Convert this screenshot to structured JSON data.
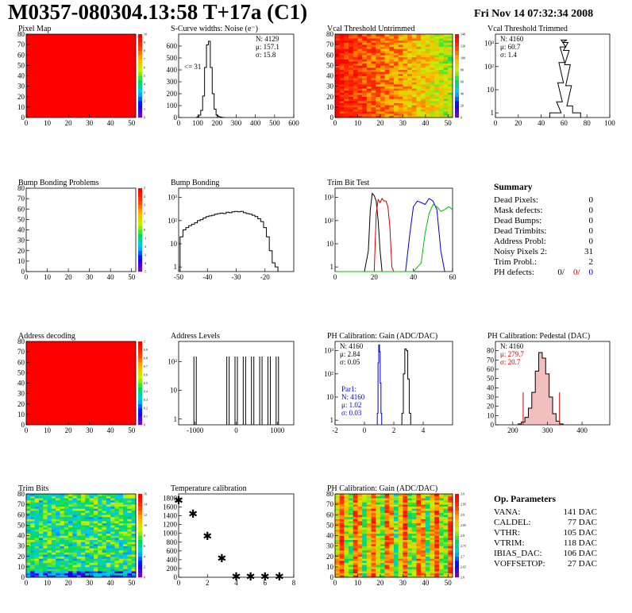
{
  "header": {
    "title": "M0357-080304.13:58 T+17a (C1)",
    "timestamp": "Fri Nov 14 07:32:34 2008"
  },
  "summary": {
    "title": "Summary",
    "rows": [
      {
        "label": "Dead Pixels:",
        "value": "0"
      },
      {
        "label": "Mask defects:",
        "value": "0"
      },
      {
        "label": "Dead Bumps:",
        "value": "0"
      },
      {
        "label": "Dead Trimbits:",
        "value": "0"
      },
      {
        "label": "Address Probl:",
        "value": "0"
      },
      {
        "label": "Noisy Pixels 2:",
        "value": "31"
      },
      {
        "label": "Trim Probl.:",
        "value": "2"
      }
    ],
    "ph_label": "PH defects:",
    "ph_values": [
      "0/",
      "0/",
      "0"
    ]
  },
  "op_params": {
    "title": "Op. Parameters",
    "rows": [
      {
        "label": "VANA:",
        "value": "141 DAC"
      },
      {
        "label": "CALDEL:",
        "value": "77 DAC"
      },
      {
        "label": "VTHR:",
        "value": "105 DAC"
      },
      {
        "label": "VTRIM:",
        "value": "118 DAC"
      },
      {
        "label": "IBIAS_DAC:",
        "value": "106 DAC"
      },
      {
        "label": "VOFFSETOP:",
        "value": "27 DAC"
      }
    ]
  },
  "chart_data": [
    {
      "id": "pixel-map",
      "type": "heatmap",
      "title": "Pixel Map",
      "xlim": [
        0,
        52
      ],
      "ylim": [
        0,
        80
      ],
      "xticks": [
        "0",
        "10",
        "20",
        "30",
        "40",
        "50"
      ],
      "yticks": [
        "0",
        "10",
        "20",
        "30",
        "40",
        "50",
        "60",
        "70",
        "80"
      ],
      "fill": "uniform",
      "value": 10,
      "zlim": [
        0,
        10
      ],
      "zticks": [
        "0",
        "1",
        "2",
        "3",
        "4",
        "5",
        "6",
        "7",
        "8",
        "9",
        "10"
      ]
    },
    {
      "id": "scurve",
      "type": "bar",
      "title": "S-Curve widths: Noise (e⁻)",
      "xlim": [
        0,
        600
      ],
      "ylim": [
        0,
        700
      ],
      "xticks": [
        "0",
        "100",
        "200",
        "300",
        "400",
        "500",
        "600"
      ],
      "yticks": [
        "0",
        "100",
        "200",
        "300",
        "400",
        "500",
        "600"
      ],
      "stats": [
        "N: 4129",
        "μ: 157.1",
        "σ: 15.8"
      ],
      "annotation": "<= 31",
      "x": [
        100,
        110,
        120,
        130,
        140,
        150,
        160,
        170,
        180,
        190,
        200,
        210,
        220,
        230
      ],
      "values": [
        5,
        20,
        60,
        180,
        420,
        610,
        640,
        420,
        200,
        70,
        20,
        8,
        3,
        1
      ]
    },
    {
      "id": "vcal-untrimmed",
      "type": "heatmap",
      "title": "Vcal Threshold Untrimmed",
      "xlim": [
        0,
        52
      ],
      "ylim": [
        0,
        80
      ],
      "xticks": [
        "0",
        "10",
        "20",
        "30",
        "40",
        "50"
      ],
      "yticks": [
        "0",
        "10",
        "20",
        "30",
        "40",
        "50",
        "60",
        "70",
        "80"
      ],
      "fill": "gradient-left-right",
      "zlim": [
        0,
        140
      ],
      "zticks": [
        "0",
        "20",
        "40",
        "60",
        "80",
        "100",
        "120",
        "140"
      ]
    },
    {
      "id": "vcal-trimmed",
      "type": "bar",
      "title": "Vcal Threshold Trimmed",
      "xlim": [
        0,
        100
      ],
      "log": true,
      "xticks": [
        "0",
        "20",
        "40",
        "60",
        "80",
        "100"
      ],
      "yticks": [
        "1",
        "10",
        "10²",
        "10³"
      ],
      "stats": [
        "N: 4160",
        "μ: 60.7",
        "σ: 1.4"
      ],
      "x": [
        50,
        55,
        56,
        57,
        58,
        59,
        60,
        61,
        62,
        63,
        64,
        65,
        70,
        72
      ],
      "values": [
        1,
        1,
        3,
        20,
        150,
        700,
        1400,
        1100,
        500,
        120,
        15,
        2,
        1,
        1
      ]
    },
    {
      "id": "bump-map",
      "type": "heatmap",
      "title": "Bump Bonding Problems",
      "xlim": [
        0,
        52
      ],
      "ylim": [
        0,
        80
      ],
      "xticks": [
        "0",
        "10",
        "20",
        "30",
        "40",
        "50"
      ],
      "yticks": [
        "0",
        "10",
        "20",
        "30",
        "40",
        "50",
        "60",
        "70",
        "80"
      ],
      "fill": "none",
      "zlim": [
        -5,
        5
      ],
      "zticks": [
        "-5",
        "-4",
        "-3",
        "-2",
        "-1",
        "0",
        "1",
        "2",
        "3",
        "4",
        "5"
      ]
    },
    {
      "id": "bump-bonding",
      "type": "bar",
      "title": "Bump Bonding",
      "xlim": [
        -50,
        -10
      ],
      "log": true,
      "xticks": [
        "-50",
        "-40",
        "-30",
        "-20"
      ],
      "yticks": [
        "1",
        "10",
        "10²",
        "10³"
      ],
      "x": [
        -49,
        -48,
        -47,
        -46,
        -45,
        -44,
        -43,
        -42,
        -41,
        -40,
        -39,
        -38,
        -37,
        -36,
        -35,
        -34,
        -33,
        -32,
        -31,
        -30,
        -29,
        -28,
        -27,
        -26,
        -25,
        -24,
        -23,
        -22,
        -21,
        -20,
        -19,
        -18,
        -17,
        -16
      ],
      "values": [
        20,
        40,
        50,
        60,
        70,
        80,
        100,
        110,
        130,
        150,
        160,
        170,
        190,
        200,
        210,
        200,
        230,
        220,
        240,
        250,
        240,
        250,
        220,
        200,
        190,
        170,
        150,
        120,
        90,
        50,
        20,
        5,
        1.5,
        1
      ]
    },
    {
      "id": "trim-bit-test",
      "type": "line",
      "title": "Trim Bit Test",
      "xlim": [
        0,
        60
      ],
      "log": true,
      "xticks": [
        "0",
        "20",
        "40",
        "60"
      ],
      "yticks": [
        "1",
        "10",
        "10²",
        "10³"
      ],
      "series": [
        {
          "color": "#000000",
          "x": [
            15,
            17,
            18,
            19,
            20,
            21,
            22,
            23,
            24
          ],
          "values": [
            0.6,
            5,
            300,
            1500,
            1200,
            700,
            100,
            5,
            0.6
          ]
        },
        {
          "color": "#cc0000",
          "x": [
            20,
            21,
            22,
            23,
            24,
            25,
            26,
            27,
            28,
            29,
            30
          ],
          "values": [
            0.6,
            200,
            800,
            600,
            900,
            700,
            700,
            400,
            50,
            1,
            0.6
          ]
        },
        {
          "color": "#0000cc",
          "x": [
            36,
            38,
            40,
            42,
            44,
            46,
            48,
            50,
            52,
            54,
            56
          ],
          "values": [
            0.6,
            20,
            400,
            700,
            600,
            500,
            900,
            700,
            300,
            5,
            0.6
          ]
        },
        {
          "color": "#00bb00",
          "x": [
            0,
            40,
            44,
            46,
            48,
            50,
            52,
            54,
            56,
            58,
            60
          ],
          "values": [
            0.6,
            0.6,
            1.5,
            30,
            200,
            500,
            400,
            250,
            300,
            400,
            300
          ]
        }
      ]
    },
    {
      "id": "address-map",
      "type": "heatmap",
      "title": "Address decoding",
      "xlim": [
        0,
        52
      ],
      "ylim": [
        0,
        80
      ],
      "xticks": [
        "0",
        "10",
        "20",
        "30",
        "40",
        "50"
      ],
      "yticks": [
        "0",
        "10",
        "20",
        "30",
        "40",
        "50",
        "60",
        "70",
        "80"
      ],
      "fill": "uniform",
      "value": 1,
      "zlim": [
        0,
        1
      ],
      "zticks": [
        "0",
        "0.1",
        "0.2",
        "0.3",
        "0.4",
        "0.5",
        "0.6",
        "0.7",
        "0.8",
        "0.9",
        "1"
      ]
    },
    {
      "id": "address-levels",
      "type": "bar",
      "title": "Address Levels",
      "xlim": [
        -1400,
        1400
      ],
      "log": true,
      "xticks": [
        "-1000",
        "0",
        "1000"
      ],
      "yticks": [
        "1",
        "10",
        "10²"
      ],
      "x": [
        -1000,
        -200,
        0,
        200,
        400,
        600,
        800,
        1000
      ],
      "values": [
        150,
        150,
        150,
        150,
        150,
        150,
        150,
        150
      ]
    },
    {
      "id": "ph-gain",
      "type": "bar",
      "title": "PH Calibration: Gain (ADC/DAC)",
      "xlim": [
        -2,
        6
      ],
      "log": true,
      "xticks": [
        "-2",
        "0",
        "2",
        "4"
      ],
      "yticks": [
        "1",
        "10",
        "10²",
        "10³"
      ],
      "stats": [
        "N: 4160",
        "μ: 2.84",
        "σ: 0.05"
      ],
      "stats2": [
        "Par1:",
        "N: 4160",
        "μ: 1.02",
        "σ: 0.03"
      ],
      "series": [
        {
          "color": "#000000",
          "x": [
            2.6,
            2.7,
            2.8,
            2.9,
            3.0,
            3.1
          ],
          "values": [
            2,
            100,
            1200,
            1000,
            60,
            2
          ]
        },
        {
          "color": "#0000cc",
          "x": [
            0.9,
            0.95,
            1.0,
            1.05,
            1.1,
            1.15
          ],
          "values": [
            2,
            300,
            1800,
            900,
            40,
            2
          ]
        }
      ]
    },
    {
      "id": "ph-pedestal",
      "type": "bar",
      "title": "PH Calibration: Pedestal (DAC)",
      "xlim": [
        150,
        480
      ],
      "ylim": [
        0,
        90
      ],
      "xticks": [
        "200",
        "300",
        "400"
      ],
      "yticks": [
        "0",
        "10",
        "20",
        "30",
        "40",
        "50",
        "60",
        "70",
        "80"
      ],
      "stats": [
        "N: 4160",
        "μ: 279.7",
        "σ: 20.7"
      ],
      "x": [
        220,
        230,
        240,
        250,
        260,
        270,
        280,
        290,
        300,
        310,
        320,
        330,
        340
      ],
      "values": [
        1,
        3,
        8,
        18,
        35,
        58,
        78,
        72,
        55,
        30,
        12,
        4,
        1
      ]
    },
    {
      "id": "trim-bits",
      "type": "heatmap",
      "title": "Trim Bits",
      "xlim": [
        0,
        52
      ],
      "ylim": [
        0,
        80
      ],
      "xticks": [
        "0",
        "10",
        "20",
        "30",
        "40",
        "50"
      ],
      "yticks": [
        "0",
        "10",
        "20",
        "30",
        "40",
        "50",
        "60",
        "70",
        "80"
      ],
      "fill": "noise-green",
      "zlim": [
        0,
        16
      ],
      "zticks": [
        "0",
        "2",
        "4",
        "6",
        "8",
        "10",
        "12",
        "14",
        "16"
      ]
    },
    {
      "id": "temperature",
      "type": "scatter",
      "title": "Temperature calibration",
      "xlim": [
        0,
        8
      ],
      "ylim": [
        0,
        1900
      ],
      "xticks": [
        "0",
        "2",
        "4",
        "6",
        "8"
      ],
      "yticks": [
        "0",
        "200",
        "400",
        "600",
        "800",
        "1000",
        "1200",
        "1400",
        "1600",
        "1800"
      ],
      "x": [
        0,
        1,
        2,
        3,
        4,
        5,
        6,
        7
      ],
      "values": [
        1740,
        1430,
        920,
        420,
        0,
        0,
        0,
        0
      ]
    },
    {
      "id": "ph-gain-map",
      "type": "heatmap",
      "title": "PH Calibration: Gain (ADC/DAC)",
      "xlim": [
        0,
        52
      ],
      "ylim": [
        0,
        80
      ],
      "xticks": [
        "0",
        "10",
        "20",
        "30",
        "40",
        "50"
      ],
      "yticks": [
        "0",
        "10",
        "20",
        "30",
        "40",
        "50",
        "60",
        "70",
        "80"
      ],
      "fill": "noise-stripes",
      "zlim": [
        2.6,
        3.0
      ],
      "zticks": [
        "2.6",
        "2.65",
        "2.7",
        "2.75",
        "2.8",
        "2.85",
        "2.9",
        "2.95",
        "3.0"
      ]
    }
  ]
}
